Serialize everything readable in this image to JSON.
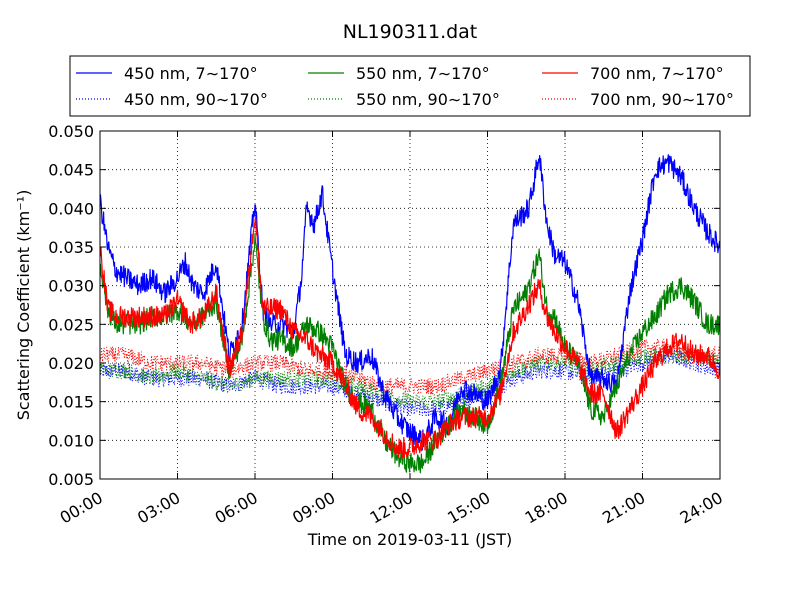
{
  "chart_data": {
    "type": "line",
    "title": "NL190311.dat",
    "xlabel": "Time on 2019-03-11 (JST)",
    "ylabel": "Scattering Coefficient (km⁻¹)",
    "x_unit": "hours",
    "xlim": [
      0,
      24
    ],
    "ylim": [
      0.005,
      0.05
    ],
    "x_ticks": [
      "00:00",
      "03:00",
      "06:00",
      "09:00",
      "12:00",
      "15:00",
      "18:00",
      "21:00",
      "24:00"
    ],
    "y_ticks": [
      "0.005",
      "0.010",
      "0.015",
      "0.020",
      "0.025",
      "0.030",
      "0.035",
      "0.040",
      "0.045",
      "0.050"
    ],
    "grid": true,
    "legend_position": "top",
    "series": [
      {
        "name": "450 nm, 7∼170°",
        "color": "#0000ff",
        "style": "solid",
        "x": [
          0,
          0.3,
          0.6,
          1,
          1.5,
          2,
          2.5,
          3,
          3.3,
          3.6,
          4,
          4.5,
          5,
          5.5,
          6,
          6.3,
          6.6,
          7,
          7.5,
          7.8,
          8,
          8.3,
          8.6,
          9,
          9.5,
          10,
          10.5,
          11,
          11.5,
          12,
          12.5,
          13,
          13.5,
          14,
          14.5,
          15,
          15.5,
          16,
          16.3,
          16.6,
          17,
          17.3,
          17.6,
          18,
          18.5,
          19,
          19.5,
          20,
          20.5,
          21,
          21.5,
          22,
          22.5,
          23,
          23.5,
          24
        ],
        "y": [
          0.041,
          0.035,
          0.032,
          0.031,
          0.03,
          0.031,
          0.029,
          0.031,
          0.033,
          0.03,
          0.029,
          0.033,
          0.021,
          0.025,
          0.041,
          0.027,
          0.025,
          0.025,
          0.024,
          0.031,
          0.04,
          0.038,
          0.042,
          0.032,
          0.021,
          0.02,
          0.021,
          0.016,
          0.013,
          0.011,
          0.01,
          0.013,
          0.012,
          0.017,
          0.016,
          0.015,
          0.019,
          0.038,
          0.039,
          0.04,
          0.047,
          0.038,
          0.034,
          0.033,
          0.028,
          0.018,
          0.018,
          0.017,
          0.029,
          0.036,
          0.045,
          0.046,
          0.044,
          0.04,
          0.037,
          0.035
        ]
      },
      {
        "name": "450 nm, 90∼170°",
        "color": "#0000ff",
        "style": "dotted",
        "x": [
          0,
          1,
          2,
          3,
          4,
          5,
          6,
          7,
          8,
          9,
          10,
          11,
          12,
          13,
          14,
          15,
          16,
          17,
          18,
          19,
          20,
          21,
          22,
          23,
          24
        ],
        "y": [
          0.019,
          0.019,
          0.018,
          0.018,
          0.018,
          0.017,
          0.018,
          0.017,
          0.017,
          0.017,
          0.016,
          0.015,
          0.014,
          0.014,
          0.015,
          0.016,
          0.018,
          0.019,
          0.019,
          0.018,
          0.019,
          0.02,
          0.021,
          0.02,
          0.019
        ]
      },
      {
        "name": "550 nm, 7∼170°",
        "color": "#008000",
        "style": "solid",
        "x": [
          0,
          0.3,
          0.6,
          1,
          1.5,
          2,
          2.5,
          3,
          3.5,
          4,
          4.5,
          5,
          5.5,
          6,
          6.3,
          6.6,
          7,
          7.5,
          8,
          8.5,
          9,
          9.5,
          10,
          10.5,
          11,
          11.5,
          12,
          12.5,
          13,
          13.5,
          14,
          14.5,
          15,
          15.5,
          16,
          16.5,
          17,
          17.3,
          17.6,
          18,
          18.5,
          19,
          19.5,
          20,
          20.5,
          21,
          21.5,
          22,
          22.5,
          23,
          23.5,
          24
        ],
        "y": [
          0.033,
          0.027,
          0.025,
          0.025,
          0.025,
          0.026,
          0.026,
          0.027,
          0.025,
          0.026,
          0.028,
          0.019,
          0.023,
          0.036,
          0.026,
          0.023,
          0.023,
          0.022,
          0.025,
          0.024,
          0.022,
          0.017,
          0.015,
          0.014,
          0.01,
          0.008,
          0.007,
          0.007,
          0.01,
          0.012,
          0.014,
          0.013,
          0.012,
          0.017,
          0.027,
          0.029,
          0.034,
          0.027,
          0.026,
          0.022,
          0.02,
          0.014,
          0.013,
          0.017,
          0.021,
          0.024,
          0.026,
          0.029,
          0.03,
          0.028,
          0.025,
          0.025
        ]
      },
      {
        "name": "550 nm, 90∼170°",
        "color": "#008000",
        "style": "dotted",
        "x": [
          0,
          1,
          2,
          3,
          4,
          5,
          6,
          7,
          8,
          9,
          10,
          11,
          12,
          13,
          14,
          15,
          16,
          17,
          18,
          19,
          20,
          21,
          22,
          23,
          24
        ],
        "y": [
          0.019,
          0.019,
          0.018,
          0.019,
          0.018,
          0.017,
          0.018,
          0.018,
          0.018,
          0.018,
          0.017,
          0.016,
          0.015,
          0.015,
          0.016,
          0.017,
          0.019,
          0.02,
          0.02,
          0.019,
          0.02,
          0.021,
          0.021,
          0.021,
          0.02
        ]
      },
      {
        "name": "700 nm, 7∼170°",
        "color": "#ff0000",
        "style": "solid",
        "x": [
          0,
          0.3,
          0.6,
          1,
          1.5,
          2,
          2.5,
          3,
          3.5,
          4,
          4.5,
          5,
          5.5,
          6,
          6.3,
          6.6,
          7,
          7.5,
          8,
          8.5,
          9,
          9.5,
          10,
          10.5,
          11,
          11.5,
          12,
          12.5,
          13,
          13.5,
          14,
          14.5,
          15,
          15.5,
          16,
          16.5,
          17,
          17.3,
          17.6,
          18,
          18.5,
          19,
          19.5,
          20,
          20.5,
          21,
          21.5,
          22,
          22.5,
          23,
          23.5,
          24
        ],
        "y": [
          0.035,
          0.027,
          0.026,
          0.026,
          0.026,
          0.026,
          0.026,
          0.028,
          0.025,
          0.026,
          0.029,
          0.019,
          0.024,
          0.039,
          0.027,
          0.027,
          0.027,
          0.024,
          0.023,
          0.021,
          0.02,
          0.017,
          0.014,
          0.013,
          0.011,
          0.009,
          0.009,
          0.01,
          0.01,
          0.012,
          0.013,
          0.013,
          0.013,
          0.016,
          0.024,
          0.027,
          0.03,
          0.026,
          0.024,
          0.022,
          0.02,
          0.016,
          0.016,
          0.011,
          0.014,
          0.017,
          0.02,
          0.022,
          0.023,
          0.021,
          0.021,
          0.019
        ]
      },
      {
        "name": "700 nm, 90∼170°",
        "color": "#ff0000",
        "style": "dotted",
        "x": [
          0,
          1,
          2,
          3,
          4,
          5,
          6,
          7,
          8,
          9,
          10,
          11,
          12,
          13,
          14,
          15,
          16,
          17,
          18,
          19,
          20,
          21,
          22,
          23,
          24
        ],
        "y": [
          0.021,
          0.021,
          0.02,
          0.02,
          0.02,
          0.019,
          0.02,
          0.02,
          0.019,
          0.019,
          0.018,
          0.017,
          0.017,
          0.017,
          0.018,
          0.019,
          0.02,
          0.021,
          0.021,
          0.02,
          0.021,
          0.022,
          0.022,
          0.021,
          0.021
        ]
      }
    ]
  }
}
